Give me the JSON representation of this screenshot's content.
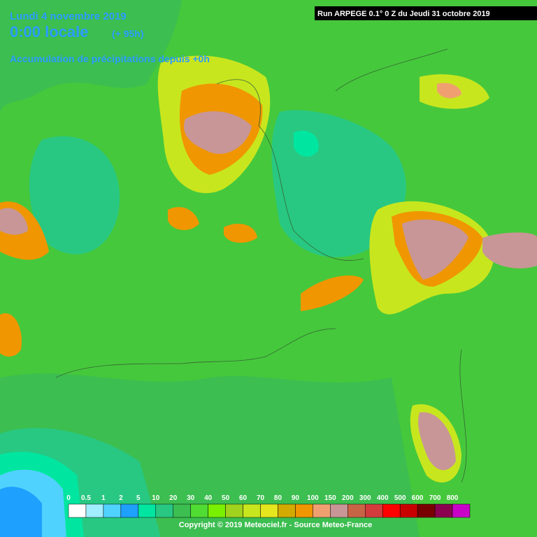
{
  "header": {
    "date": "Lundi 4 novembre 2019",
    "time": "0:00 locale",
    "offset": "(+ 95h)",
    "description": "Accumulation de précipitations depuis +0h",
    "run": "Run ARPEGE 0.1° 0 Z du Jeudi 31 octobre 2019"
  },
  "legend": [
    {
      "label": "0",
      "color": "#ffffff"
    },
    {
      "label": "0.5",
      "color": "#a0eeff"
    },
    {
      "label": "1",
      "color": "#50d2ff"
    },
    {
      "label": "2",
      "color": "#1ea0ff"
    },
    {
      "label": "5",
      "color": "#00e6a0"
    },
    {
      "label": "10",
      "color": "#28c882"
    },
    {
      "label": "20",
      "color": "#3cbe50"
    },
    {
      "label": "30",
      "color": "#50dc32"
    },
    {
      "label": "40",
      "color": "#78f000"
    },
    {
      "label": "50",
      "color": "#a0d21e"
    },
    {
      "label": "60",
      "color": "#c8e61e"
    },
    {
      "label": "70",
      "color": "#e6e61e"
    },
    {
      "label": "80",
      "color": "#d2aa00"
    },
    {
      "label": "90",
      "color": "#f09600"
    },
    {
      "label": "100",
      "color": "#f0a070"
    },
    {
      "label": "150",
      "color": "#c89696"
    },
    {
      "label": "200",
      "color": "#c86446"
    },
    {
      "label": "300",
      "color": "#d23c3c"
    },
    {
      "label": "400",
      "color": "#ff0000"
    },
    {
      "label": "500",
      "color": "#c80000"
    },
    {
      "label": "600",
      "color": "#780000"
    },
    {
      "label": "700",
      "color": "#8c0050"
    },
    {
      "label": "800",
      "color": "#c800c8"
    }
  ],
  "copyright": "Copyright © 2019 Meteociel.fr - Source Meteo-France"
}
